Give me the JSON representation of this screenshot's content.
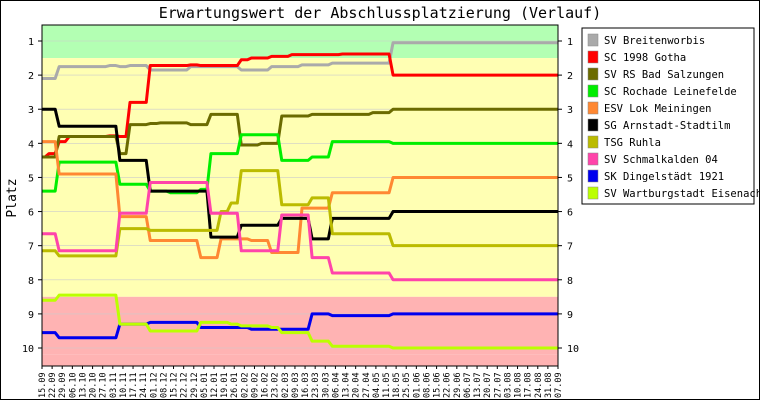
{
  "chart_data": {
    "type": "line",
    "title": "Erwartungswert der Abschlussplatzierung (Verlauf)",
    "ylabel": "Platz",
    "xlabel": "",
    "ylim": [
      1,
      10
    ],
    "y_inverted": true,
    "y_ticks": [
      "1",
      "2",
      "3",
      "4",
      "5",
      "6",
      "7",
      "8",
      "9",
      "10"
    ],
    "x": [
      "15.09",
      "22.09",
      "29.09",
      "06.10",
      "13.10",
      "20.10",
      "27.10",
      "03.11",
      "10.11",
      "17.11",
      "24.11",
      "01.12",
      "08.12",
      "15.12",
      "22.12",
      "29.12",
      "05.01",
      "12.01",
      "19.01",
      "26.01",
      "02.02",
      "09.02",
      "16.02",
      "23.02",
      "02.03",
      "09.03",
      "16.03",
      "23.03",
      "30.03",
      "06.04",
      "13.04",
      "20.04",
      "27.04",
      "04.05",
      "11.05",
      "18.05",
      "25.05",
      "01.06",
      "08.06",
      "15.06",
      "22.06",
      "29.06",
      "06.07",
      "13.07",
      "20.07",
      "27.07",
      "03.08",
      "10.08",
      "17.08",
      "24.08",
      "31.08",
      "07.09"
    ],
    "bands": [
      {
        "name": "promotion",
        "color": "#b3ffb3",
        "to_place": 1.5
      },
      {
        "name": "stay",
        "color": "#ffffb3",
        "to_place": 8.5
      },
      {
        "name": "relegation",
        "color": "#ffb3b3",
        "to_place": 10.2
      }
    ],
    "series": [
      {
        "name": "SV Breitenworbis",
        "color": "#aaaaaa",
        "values": [
          2.1,
          2.1,
          1.75,
          1.75,
          1.75,
          1.75,
          1.75,
          1.72,
          1.75,
          1.72,
          1.72,
          1.85,
          1.85,
          1.85,
          1.85,
          1.75,
          1.75,
          1.75,
          1.75,
          1.75,
          1.85,
          1.85,
          1.85,
          1.75,
          1.75,
          1.75,
          1.7,
          1.7,
          1.7,
          1.65,
          1.65,
          1.65,
          1.65,
          1.65,
          1.65,
          1.05,
          1.05,
          1.05,
          1.05,
          1.05,
          1.05,
          1.05,
          1.05,
          1.05,
          1.05,
          1.05,
          1.05,
          1.05,
          1.05,
          1.05,
          1.05,
          1.05
        ]
      },
      {
        "name": "SC 1998 Gotha",
        "color": "#ff0000",
        "values": [
          4.4,
          4.3,
          3.95,
          3.8,
          3.8,
          3.8,
          3.8,
          3.78,
          3.8,
          2.8,
          2.8,
          1.72,
          1.72,
          1.72,
          1.72,
          1.7,
          1.72,
          1.72,
          1.72,
          1.72,
          1.55,
          1.5,
          1.5,
          1.45,
          1.45,
          1.4,
          1.4,
          1.4,
          1.4,
          1.4,
          1.38,
          1.38,
          1.38,
          1.38,
          1.38,
          2.0,
          2.0,
          2.0,
          2.0,
          2.0,
          2.0,
          2.0,
          2.0,
          2.0,
          2.0,
          2.0,
          2.0,
          2.0,
          2.0,
          2.0,
          2.0,
          2.0
        ]
      },
      {
        "name": "SV RS Bad Salzungen",
        "color": "#6b6b00",
        "values": [
          4.4,
          4.4,
          3.8,
          3.8,
          3.8,
          3.8,
          3.8,
          3.8,
          4.3,
          3.45,
          3.45,
          3.42,
          3.4,
          3.4,
          3.4,
          3.45,
          3.45,
          3.15,
          3.15,
          3.15,
          4.05,
          4.05,
          4.0,
          4.0,
          3.2,
          3.2,
          3.2,
          3.15,
          3.15,
          3.15,
          3.15,
          3.15,
          3.15,
          3.1,
          3.1,
          3.0,
          3.0,
          3.0,
          3.0,
          3.0,
          3.0,
          3.0,
          3.0,
          3.0,
          3.0,
          3.0,
          3.0,
          3.0,
          3.0,
          3.0,
          3.0,
          3.0
        ]
      },
      {
        "name": "SC Rochade Leinefelde",
        "color": "#00ee00",
        "values": [
          5.4,
          5.4,
          4.55,
          4.55,
          4.55,
          4.55,
          4.55,
          4.55,
          5.2,
          5.2,
          5.2,
          5.4,
          5.4,
          5.45,
          5.45,
          5.45,
          5.35,
          4.3,
          4.3,
          4.3,
          3.75,
          3.75,
          3.75,
          3.75,
          4.5,
          4.5,
          4.5,
          4.4,
          4.4,
          3.95,
          3.95,
          3.95,
          3.95,
          3.95,
          3.95,
          4.0,
          4.0,
          4.0,
          4.0,
          4.0,
          4.0,
          4.0,
          4.0,
          4.0,
          4.0,
          4.0,
          4.0,
          4.0,
          4.0,
          4.0,
          4.0,
          4.0
        ]
      },
      {
        "name": "ESV Lok Meiningen",
        "color": "#ff8833",
        "values": [
          3.95,
          3.95,
          4.9,
          4.9,
          4.9,
          4.9,
          4.9,
          4.9,
          6.15,
          6.15,
          6.15,
          6.85,
          6.85,
          6.85,
          6.85,
          6.85,
          7.35,
          7.35,
          6.8,
          6.8,
          6.8,
          6.85,
          6.85,
          7.2,
          7.2,
          7.2,
          5.9,
          5.9,
          5.9,
          5.45,
          5.45,
          5.45,
          5.45,
          5.45,
          5.45,
          5.0,
          5.0,
          5.0,
          5.0,
          5.0,
          5.0,
          5.0,
          5.0,
          5.0,
          5.0,
          5.0,
          5.0,
          5.0,
          5.0,
          5.0,
          5.0,
          5.0
        ]
      },
      {
        "name": "SG Arnstadt-Stadtilm",
        "color": "#000000",
        "values": [
          3.0,
          3.0,
          3.5,
          3.5,
          3.5,
          3.5,
          3.5,
          3.5,
          4.5,
          4.5,
          4.5,
          5.4,
          5.4,
          5.4,
          5.4,
          5.4,
          5.4,
          6.75,
          6.75,
          6.75,
          6.4,
          6.4,
          6.4,
          6.4,
          6.2,
          6.2,
          6.2,
          6.8,
          6.8,
          6.2,
          6.2,
          6.2,
          6.2,
          6.2,
          6.2,
          6.0,
          6.0,
          6.0,
          6.0,
          6.0,
          6.0,
          6.0,
          6.0,
          6.0,
          6.0,
          6.0,
          6.0,
          6.0,
          6.0,
          6.0,
          6.0,
          6.0
        ]
      },
      {
        "name": "TSG Ruhla",
        "color": "#bbbb00",
        "values": [
          7.15,
          7.15,
          7.3,
          7.3,
          7.3,
          7.3,
          7.3,
          7.3,
          6.5,
          6.5,
          6.5,
          6.55,
          6.55,
          6.55,
          6.55,
          6.55,
          6.55,
          6.55,
          6.0,
          5.75,
          4.8,
          4.8,
          4.8,
          4.8,
          5.8,
          5.8,
          5.8,
          5.6,
          5.6,
          6.65,
          6.65,
          6.65,
          6.65,
          6.65,
          6.65,
          7.0,
          7.0,
          7.0,
          7.0,
          7.0,
          7.0,
          7.0,
          7.0,
          7.0,
          7.0,
          7.0,
          7.0,
          7.0,
          7.0,
          7.0,
          7.0,
          7.0
        ]
      },
      {
        "name": "SV Schmalkalden 04",
        "color": "#ff44aa",
        "values": [
          6.65,
          6.65,
          7.15,
          7.15,
          7.15,
          7.15,
          7.15,
          7.15,
          6.05,
          6.05,
          6.05,
          5.15,
          5.15,
          5.15,
          5.15,
          5.15,
          5.15,
          6.05,
          6.05,
          6.05,
          7.15,
          7.15,
          7.15,
          7.15,
          6.1,
          6.1,
          6.1,
          7.35,
          7.35,
          7.8,
          7.8,
          7.8,
          7.8,
          7.8,
          7.8,
          8.0,
          8.0,
          8.0,
          8.0,
          8.0,
          8.0,
          8.0,
          8.0,
          8.0,
          8.0,
          8.0,
          8.0,
          8.0,
          8.0,
          8.0,
          8.0,
          8.0
        ]
      },
      {
        "name": "SK Dingelstädt 1921",
        "color": "#0000ee",
        "values": [
          9.55,
          9.55,
          9.7,
          9.7,
          9.7,
          9.7,
          9.7,
          9.7,
          9.3,
          9.3,
          9.3,
          9.25,
          9.25,
          9.25,
          9.25,
          9.25,
          9.4,
          9.4,
          9.4,
          9.4,
          9.4,
          9.45,
          9.45,
          9.45,
          9.45,
          9.45,
          9.45,
          9.0,
          9.0,
          9.05,
          9.05,
          9.05,
          9.05,
          9.05,
          9.05,
          9.0,
          9.0,
          9.0,
          9.0,
          9.0,
          9.0,
          9.0,
          9.0,
          9.0,
          9.0,
          9.0,
          9.0,
          9.0,
          9.0,
          9.0,
          9.0,
          9.0
        ]
      },
      {
        "name": "SV Wartburgstadt Eisenach",
        "color": "#bbff00",
        "values": [
          8.6,
          8.6,
          8.45,
          8.45,
          8.45,
          8.45,
          8.45,
          8.45,
          9.3,
          9.3,
          9.3,
          9.5,
          9.5,
          9.5,
          9.5,
          9.5,
          9.25,
          9.25,
          9.25,
          9.3,
          9.35,
          9.35,
          9.35,
          9.4,
          9.55,
          9.55,
          9.55,
          9.8,
          9.8,
          9.95,
          9.95,
          9.95,
          9.95,
          9.95,
          9.95,
          10.0,
          10.0,
          10.0,
          10.0,
          10.0,
          10.0,
          10.0,
          10.0,
          10.0,
          10.0,
          10.0,
          10.0,
          10.0,
          10.0,
          10.0,
          10.0,
          10.0
        ]
      }
    ]
  }
}
